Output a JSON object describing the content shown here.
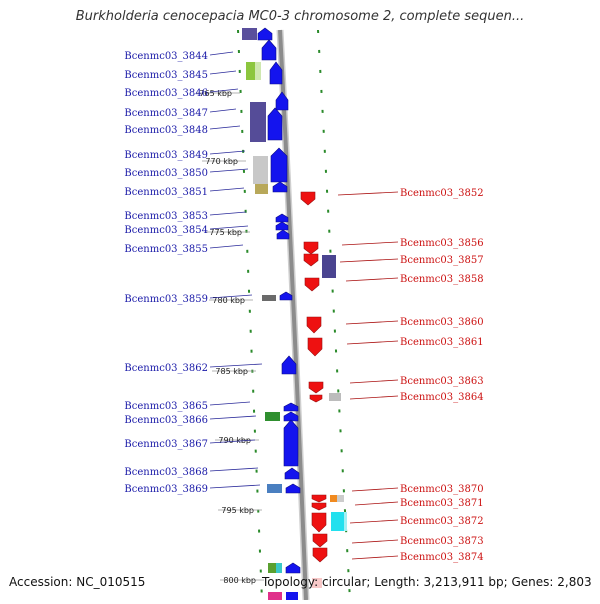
{
  "title": "Burkholderia cenocepacia MC0-3 chromosome 2, complete sequen...",
  "accession": "Accession: NC_010515",
  "topology": "Topology: circular; Length: 3,213,911 bp; Genes: 2,803",
  "colors": {
    "forward_gene": "#1414ee",
    "reverse_gene": "#ee1111",
    "forward_label": "#1a1aa8",
    "reverse_label": "#cc1111",
    "backbone": "#8c8c8c",
    "tick": "#2a8a2a"
  },
  "scale_ticks": [
    {
      "label": "765 kbp",
      "pos": 765
    },
    {
      "label": "770 kbp",
      "pos": 770
    },
    {
      "label": "775 kbp",
      "pos": 775
    },
    {
      "label": "780 kbp",
      "pos": 780
    },
    {
      "label": "785 kbp",
      "pos": 785
    },
    {
      "label": "790 kbp",
      "pos": 790
    },
    {
      "label": "795 kbp",
      "pos": 795
    },
    {
      "label": "800 kbp",
      "pos": 800
    }
  ],
  "left_genes": [
    "Bcenmc03_3844",
    "Bcenmc03_3845",
    "Bcenmc03_3846",
    "Bcenmc03_3847",
    "Bcenmc03_3848",
    "Bcenmc03_3849",
    "Bcenmc03_3850",
    "Bcenmc03_3851",
    "Bcenmc03_3853",
    "Bcenmc03_3854",
    "Bcenmc03_3855",
    "Bcenmc03_3859",
    "Bcenmc03_3862",
    "Bcenmc03_3865",
    "Bcenmc03_3866",
    "Bcenmc03_3867",
    "Bcenmc03_3868",
    "Bcenmc03_3869"
  ],
  "right_genes": [
    "Bcenmc03_3852",
    "Bcenmc03_3856",
    "Bcenmc03_3857",
    "Bcenmc03_3858",
    "Bcenmc03_3860",
    "Bcenmc03_3861",
    "Bcenmc03_3863",
    "Bcenmc03_3864",
    "Bcenmc03_3870",
    "Bcenmc03_3871",
    "Bcenmc03_3872",
    "Bcenmc03_3873",
    "Bcenmc03_3874"
  ]
}
